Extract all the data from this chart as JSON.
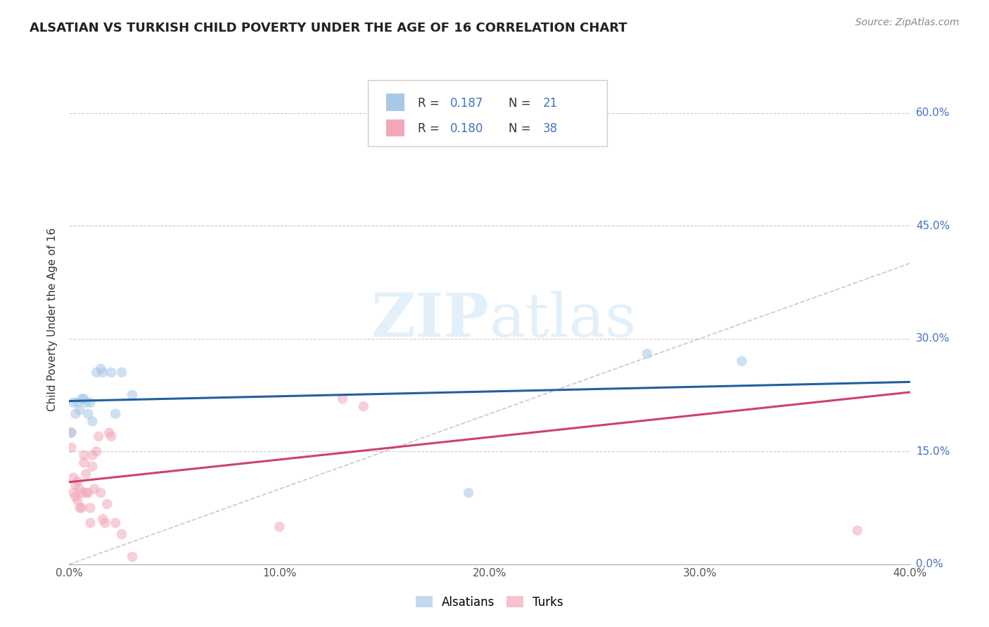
{
  "title": "ALSATIAN VS TURKISH CHILD POVERTY UNDER THE AGE OF 16 CORRELATION CHART",
  "source": "Source: ZipAtlas.com",
  "ylabel": "Child Poverty Under the Age of 16",
  "xlim": [
    0,
    0.4
  ],
  "ylim": [
    0,
    0.65
  ],
  "alsatian_color": "#a8c8e8",
  "turk_color": "#f4a7b9",
  "alsatian_line_color": "#2060a0",
  "turk_line_color": "#d04070",
  "diagonal_color": "#bbbbbb",
  "watermark_zip": "ZIP",
  "watermark_atlas": "atlas",
  "background_color": "#ffffff",
  "grid_color": "#cccccc",
  "legend_R1": "R = ",
  "legend_V1": "0.187",
  "legend_N1_label": "N = ",
  "legend_N1": "21",
  "legend_R2": "R = ",
  "legend_V2": "0.180",
  "legend_N2_label": "N = ",
  "legend_N2": "38",
  "blue_text_color": "#4472c4",
  "alsatian_x": [
    0.001,
    0.002,
    0.003,
    0.004,
    0.005,
    0.006,
    0.007,
    0.008,
    0.009,
    0.01,
    0.011,
    0.013,
    0.015,
    0.016,
    0.02,
    0.022,
    0.025,
    0.03,
    0.19,
    0.275,
    0.32
  ],
  "alsatian_y": [
    0.175,
    0.215,
    0.2,
    0.215,
    0.205,
    0.22,
    0.22,
    0.215,
    0.2,
    0.215,
    0.19,
    0.255,
    0.26,
    0.255,
    0.255,
    0.2,
    0.255,
    0.225,
    0.095,
    0.28,
    0.27
  ],
  "turk_x": [
    0.001,
    0.001,
    0.002,
    0.002,
    0.003,
    0.003,
    0.004,
    0.004,
    0.005,
    0.005,
    0.006,
    0.006,
    0.007,
    0.007,
    0.008,
    0.008,
    0.009,
    0.01,
    0.01,
    0.011,
    0.011,
    0.012,
    0.013,
    0.014,
    0.015,
    0.016,
    0.017,
    0.018,
    0.019,
    0.02,
    0.022,
    0.025,
    0.03,
    0.1,
    0.13,
    0.14,
    0.155,
    0.375
  ],
  "turk_y": [
    0.155,
    0.175,
    0.095,
    0.115,
    0.09,
    0.105,
    0.085,
    0.11,
    0.075,
    0.1,
    0.075,
    0.095,
    0.135,
    0.145,
    0.095,
    0.12,
    0.095,
    0.055,
    0.075,
    0.13,
    0.145,
    0.1,
    0.15,
    0.17,
    0.095,
    0.06,
    0.055,
    0.08,
    0.175,
    0.17,
    0.055,
    0.04,
    0.01,
    0.05,
    0.22,
    0.21,
    0.57,
    0.045
  ],
  "marker_size": 110,
  "marker_alpha": 0.55,
  "line_width": 2.2
}
